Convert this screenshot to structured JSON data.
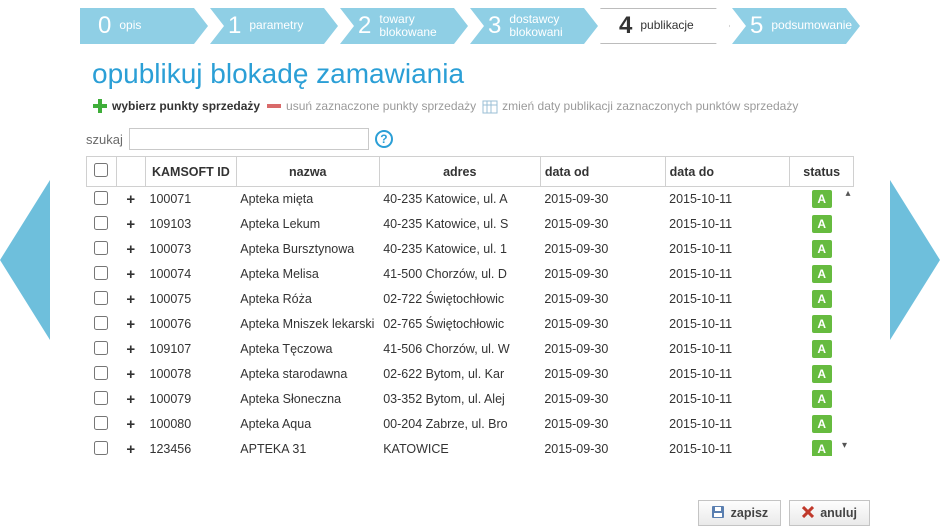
{
  "stepper": [
    {
      "num": "0",
      "label": "opis",
      "active": false
    },
    {
      "num": "1",
      "label": "parametry",
      "active": false
    },
    {
      "num": "2",
      "label": "towary\nblokowane",
      "active": false
    },
    {
      "num": "3",
      "label": "dostawcy\nblokowani",
      "active": false
    },
    {
      "num": "4",
      "label": "publikacje",
      "active": true
    },
    {
      "num": "5",
      "label": "podsumowanie",
      "active": false
    }
  ],
  "title": "opublikuj blokadę zamawiania",
  "toolbar": {
    "add": "wybierz punkty sprzedaży",
    "remove": "usuń zaznaczone punkty sprzedaży",
    "dates": "zmień daty publikacji zaznaczonych punktów sprzedaży"
  },
  "search": {
    "label": "szukaj",
    "value": ""
  },
  "columns": {
    "id": "KAMSOFT ID",
    "name": "nazwa",
    "addr": "adres",
    "from": "data od",
    "to": "data do",
    "status": "status"
  },
  "status_letter": "A",
  "status_color": "#66bb3f",
  "rows": [
    {
      "id": "100071",
      "name": "Apteka mięta",
      "addr": "40-235 Katowice, ul. A",
      "from": "2015-09-30",
      "to": "2015-10-11"
    },
    {
      "id": "109103",
      "name": "Apteka Lekum",
      "addr": "40-235 Katowice, ul. S",
      "from": "2015-09-30",
      "to": "2015-10-11"
    },
    {
      "id": "100073",
      "name": "Apteka Bursztynowa",
      "addr": "40-235 Katowice, ul. 1",
      "from": "2015-09-30",
      "to": "2015-10-11"
    },
    {
      "id": "100074",
      "name": "Apteka Melisa",
      "addr": "41-500 Chorzów, ul. D",
      "from": "2015-09-30",
      "to": "2015-10-11"
    },
    {
      "id": "100075",
      "name": "Apteka Róża",
      "addr": "02-722 Świętochłowic",
      "from": "2015-09-30",
      "to": "2015-10-11"
    },
    {
      "id": "100076",
      "name": "Apteka Mniszek lekarski",
      "addr": "02-765 Świętochłowic",
      "from": "2015-09-30",
      "to": "2015-10-11"
    },
    {
      "id": "109107",
      "name": "Apteka Tęczowa",
      "addr": "41-506 Chorzów, ul. W",
      "from": "2015-09-30",
      "to": "2015-10-11"
    },
    {
      "id": "100078",
      "name": "Apteka starodawna",
      "addr": "02-622 Bytom, ul. Kar",
      "from": "2015-09-30",
      "to": "2015-10-11"
    },
    {
      "id": "100079",
      "name": "Apteka Słoneczna",
      "addr": "03-352 Bytom, ul. Alej",
      "from": "2015-09-30",
      "to": "2015-10-11"
    },
    {
      "id": "100080",
      "name": "Apteka Aqua",
      "addr": "00-204 Zabrze, ul. Bro",
      "from": "2015-09-30",
      "to": "2015-10-11"
    },
    {
      "id": "123456",
      "name": "APTEKA 31",
      "addr": " KATOWICE",
      "from": "2015-09-30",
      "to": "2015-10-11"
    }
  ],
  "footer": {
    "save": "zapisz",
    "cancel": "anuluj"
  },
  "colors": {
    "accent": "#2b9fd6",
    "step_bg": "#8fcfe5",
    "arrow": "#6ebfdc"
  }
}
